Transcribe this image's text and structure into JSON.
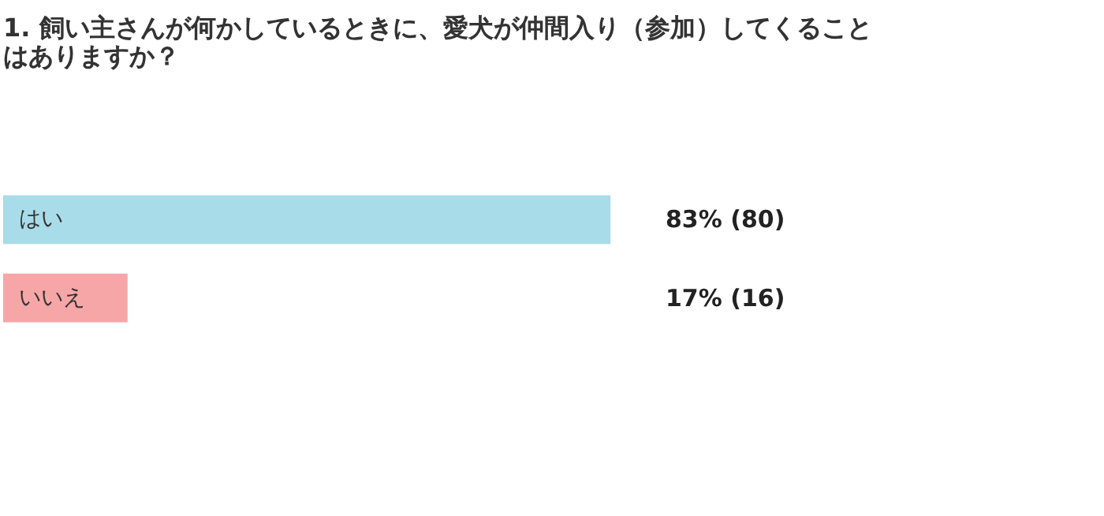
{
  "chart_data": {
    "type": "bar",
    "orientation": "horizontal",
    "title": "1. 飼い主さんが何かしているときに、愛犬が仲間入り（参加）してくることはありますか？",
    "categories": [
      "はい",
      "いいえ"
    ],
    "values": [
      83,
      17
    ],
    "colors": [
      "#a8dce8",
      "#f7a6a8"
    ],
    "value_labels": [
      "83% (80)",
      "17% (16)"
    ]
  }
}
